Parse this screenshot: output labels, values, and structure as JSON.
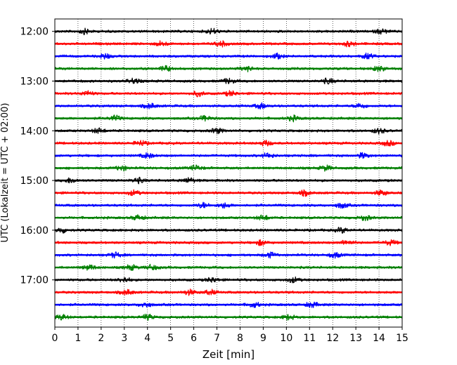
{
  "chart_data": {
    "type": "line",
    "title": "",
    "xlabel": "Zeit  [min]",
    "ylabel": "UTC (Lokalzeit = UTC + 02:00)",
    "xlim": [
      0,
      15
    ],
    "x_ticks": [
      0,
      1,
      2,
      3,
      4,
      5,
      6,
      7,
      8,
      9,
      10,
      11,
      12,
      13,
      14,
      15
    ],
    "y_time_range": [
      "11:45",
      "17:57"
    ],
    "y_ticks": [
      "12:00",
      "13:00",
      "14:00",
      "15:00",
      "16:00",
      "17:00"
    ],
    "grid": "vertical dotted at each minute",
    "trace_interval_minutes": 15,
    "trace_colors": [
      "#000000",
      "#ff0000",
      "#0000ff",
      "#008000"
    ],
    "traces": [
      {
        "start": "12:00",
        "color": "#000000",
        "bursts": [
          1.3,
          6.8,
          14.1
        ]
      },
      {
        "start": "12:15",
        "color": "#ff0000",
        "bursts": [
          4.6,
          7.2,
          12.7
        ]
      },
      {
        "start": "12:30",
        "color": "#0000ff",
        "bursts": [
          2.2,
          9.6,
          13.5
        ]
      },
      {
        "start": "12:45",
        "color": "#008000",
        "bursts": [
          4.8,
          8.3,
          14.0
        ]
      },
      {
        "start": "13:00",
        "color": "#000000",
        "bursts": [
          3.4,
          7.5,
          11.8
        ]
      },
      {
        "start": "13:15",
        "color": "#ff0000",
        "bursts": [
          1.4,
          6.2,
          7.6
        ]
      },
      {
        "start": "13:30",
        "color": "#0000ff",
        "bursts": [
          4.1,
          8.9,
          13.2
        ]
      },
      {
        "start": "13:45",
        "color": "#008000",
        "bursts": [
          2.6,
          6.5,
          10.3
        ]
      },
      {
        "start": "14:00",
        "color": "#000000",
        "bursts": [
          1.9,
          7.0,
          14.0
        ]
      },
      {
        "start": "14:15",
        "color": "#ff0000",
        "bursts": [
          3.7,
          9.1,
          14.4
        ]
      },
      {
        "start": "14:30",
        "color": "#0000ff",
        "bursts": [
          4.0,
          9.2,
          13.3
        ]
      },
      {
        "start": "14:45",
        "color": "#008000",
        "bursts": [
          2.9,
          6.1,
          11.7
        ]
      },
      {
        "start": "15:00",
        "color": "#000000",
        "bursts": [
          0.7,
          3.6,
          5.8
        ]
      },
      {
        "start": "15:15",
        "color": "#ff0000",
        "bursts": [
          3.4,
          10.8,
          14.1
        ]
      },
      {
        "start": "15:30",
        "color": "#0000ff",
        "bursts": [
          6.4,
          7.3,
          12.4
        ]
      },
      {
        "start": "15:45",
        "color": "#008000",
        "bursts": [
          3.6,
          9.0,
          13.4
        ]
      },
      {
        "start": "16:00",
        "color": "#000000",
        "bursts": [
          0.3,
          12.4
        ]
      },
      {
        "start": "16:15",
        "color": "#ff0000",
        "bursts": [
          8.9,
          12.6,
          14.5
        ]
      },
      {
        "start": "16:30",
        "color": "#0000ff",
        "bursts": [
          2.6,
          9.3,
          12.1
        ]
      },
      {
        "start": "16:45",
        "color": "#008000",
        "bursts": [
          1.5,
          3.3,
          4.2
        ]
      },
      {
        "start": "17:00",
        "color": "#000000",
        "bursts": [
          3.0,
          6.8,
          10.3
        ]
      },
      {
        "start": "17:15",
        "color": "#ff0000",
        "bursts": [
          3.1,
          5.8,
          6.7
        ]
      },
      {
        "start": "17:30",
        "color": "#0000ff",
        "bursts": [
          3.9,
          8.6,
          11.1
        ]
      },
      {
        "start": "17:45",
        "color": "#008000",
        "bursts": [
          0.3,
          4.0,
          10.1
        ]
      }
    ]
  }
}
